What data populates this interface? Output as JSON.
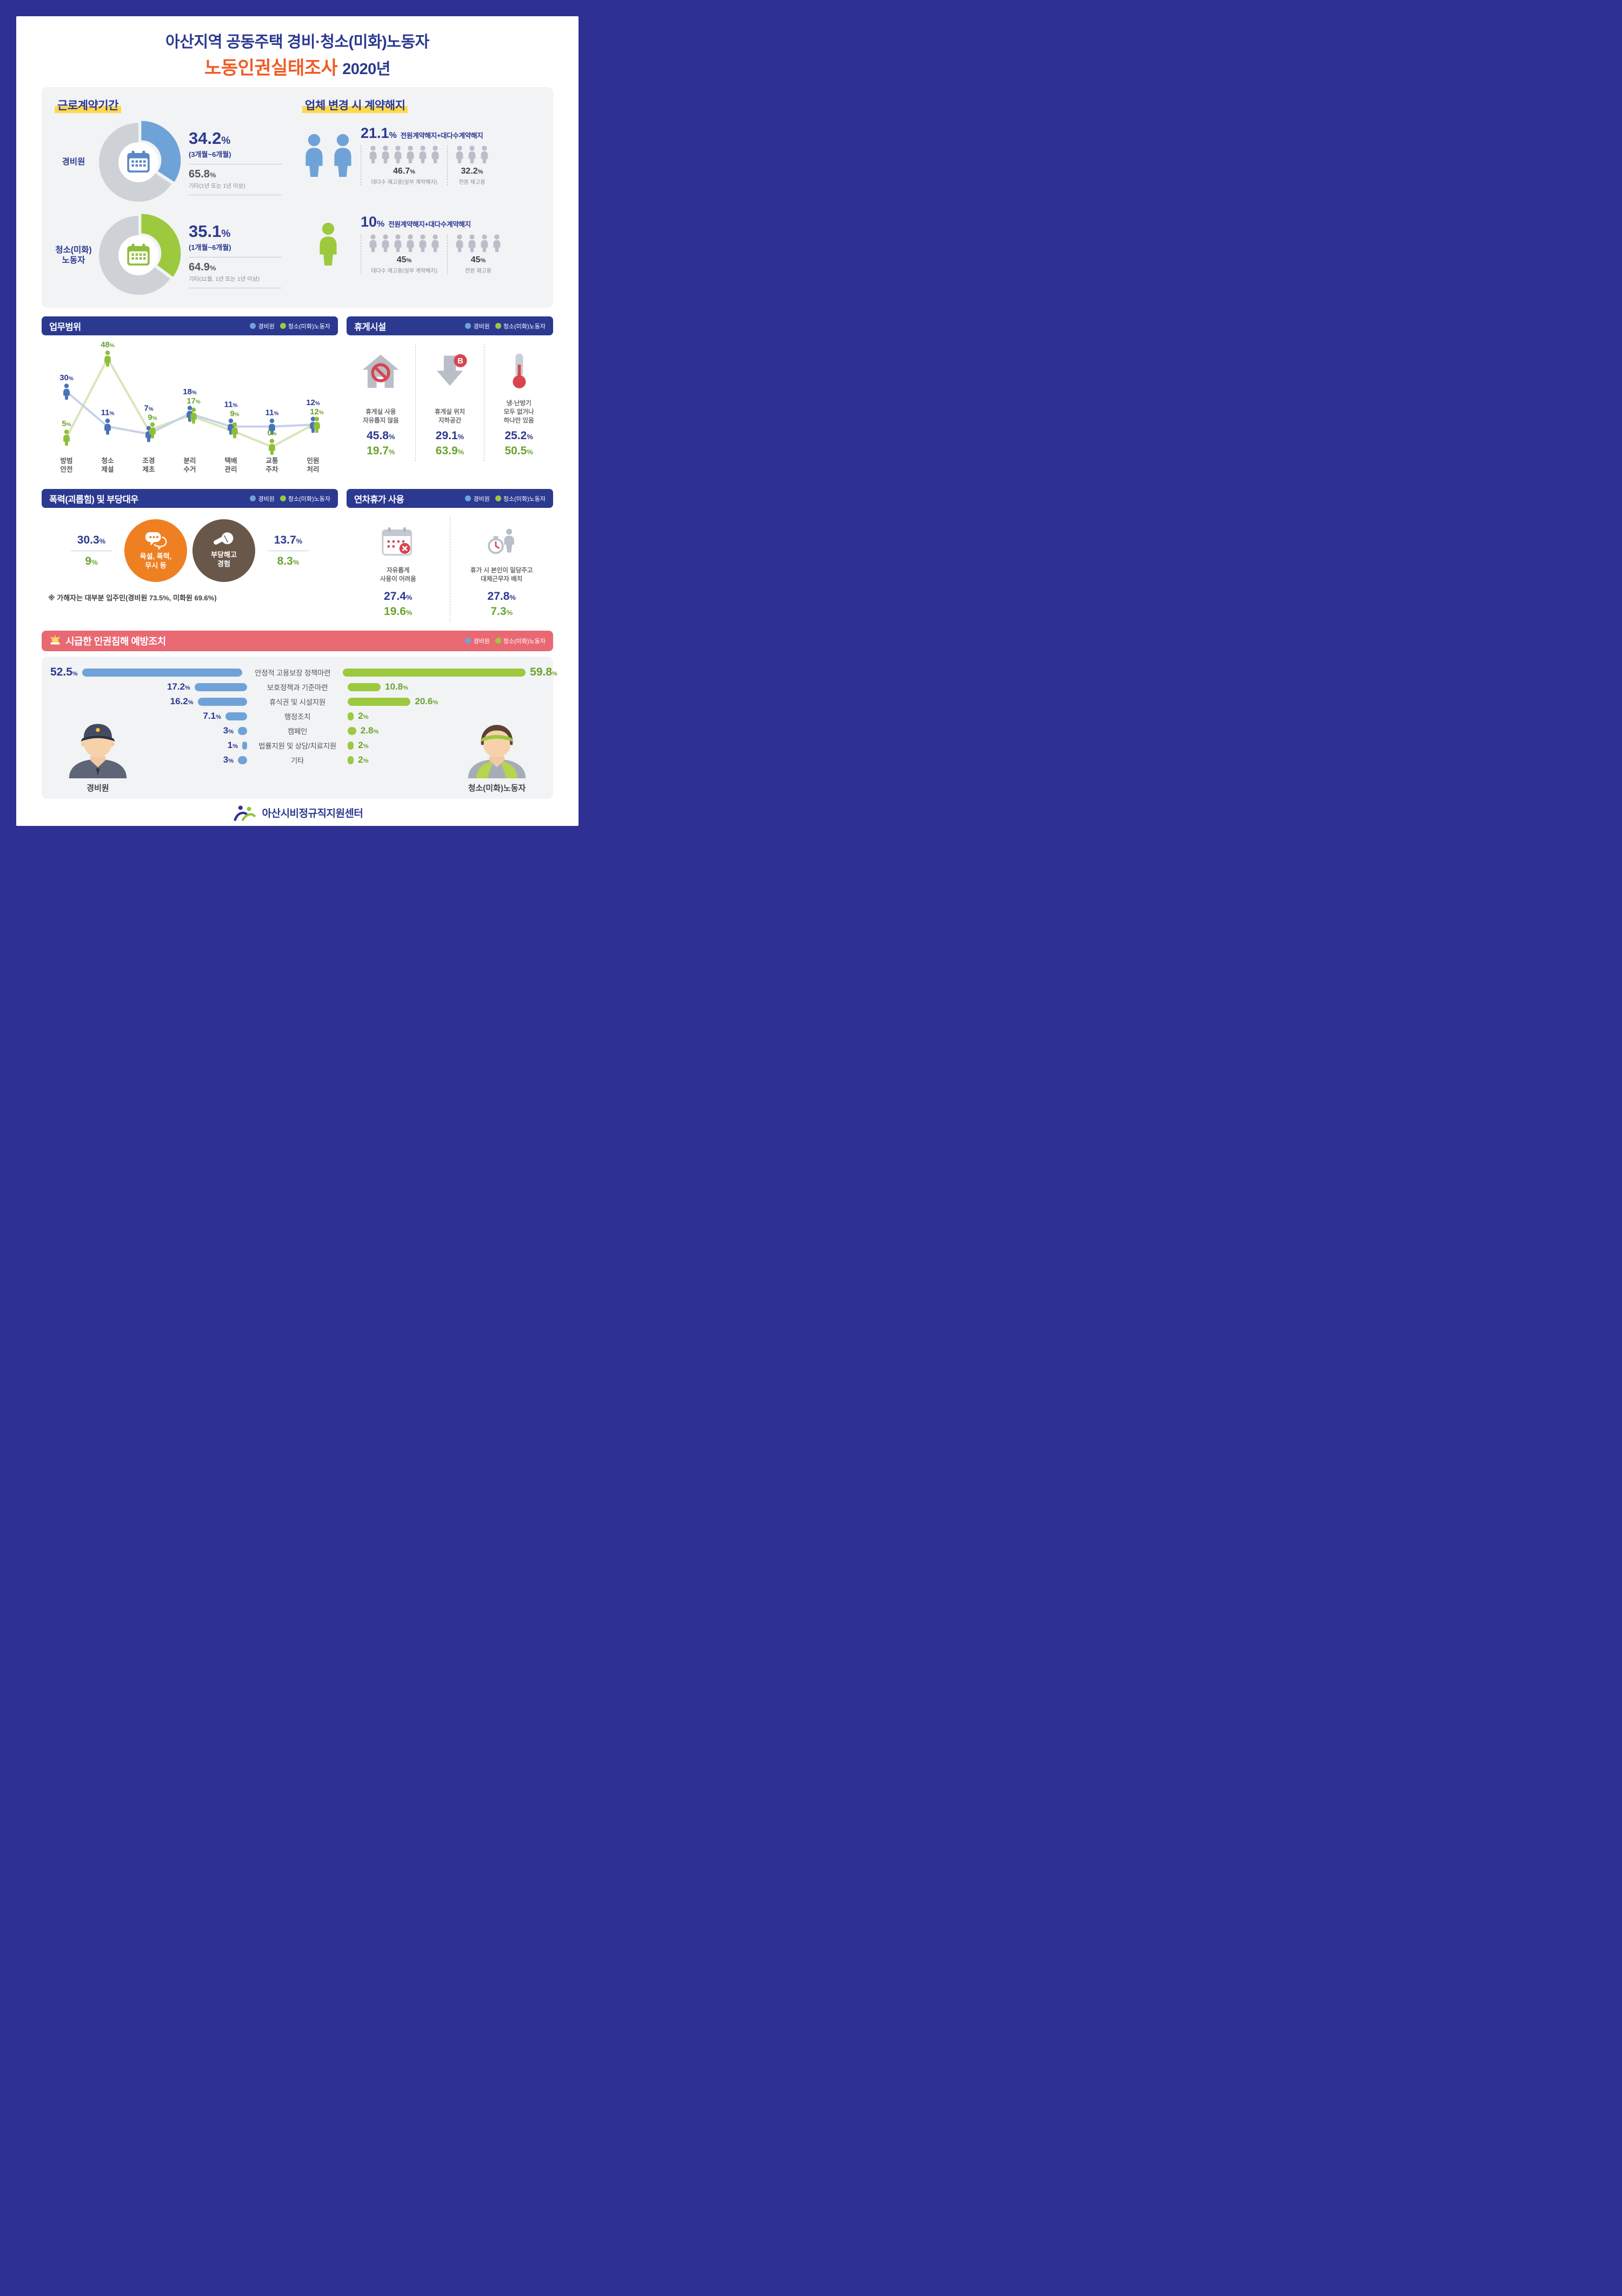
{
  "header": {
    "title_line1": "아산지역 공동주택 경비·청소(미화)노동자",
    "title_highlight": "노동인권실태조사",
    "title_year": "2020년"
  },
  "legend": {
    "guard": "경비원",
    "cleaner": "청소(미화)노동자"
  },
  "colors": {
    "navy": "#2b3990",
    "orange": "#f15a24",
    "guard_blue": "#6fa3d8",
    "cleaner_green": "#9cc93e",
    "value_green": "#6aa32f",
    "gray_icon": "#b9bec8",
    "red": "#d8454f",
    "header_red": "#e96973",
    "circle_orange": "#ef8022",
    "circle_brown": "#695749",
    "highlight_yellow": "#ffd84d"
  },
  "contract": {
    "title": "근로계약기간",
    "rows": [
      {
        "label": "경비원",
        "pct": 34.2,
        "value1": "34.2",
        "unit": "%",
        "desc1": "(3개월~6개월)",
        "value2": "65.8",
        "desc2": "기타(1년 또는 1년 이상)"
      },
      {
        "label": "청소(미화)\n노동자",
        "pct": 35.1,
        "value1": "35.1",
        "unit": "%",
        "desc1": "(1개월~6개월)",
        "value2": "64.9",
        "desc2": "기타(11월, 1년 또는 1년 이상)"
      }
    ]
  },
  "termination": {
    "title": "업체 변경 시 계약해지",
    "rows": [
      {
        "who": "guard",
        "big_count": 2,
        "headline_value": "21.1",
        "unit": "%",
        "headline_label": "전원계약해지+대다수계약해지",
        "groups": [
          {
            "count": 6,
            "value": "46.7",
            "unit": "%",
            "label": "대다수 재고용(일부 계약해지)"
          },
          {
            "count": 3,
            "value": "32.2",
            "unit": "%",
            "label": "전원 재고용"
          }
        ]
      },
      {
        "who": "cleaner",
        "big_count": 1,
        "headline_value": "10",
        "unit": "%",
        "headline_label": "전원계약해지+대다수계약해지",
        "groups": [
          {
            "count": 6,
            "value": "45",
            "unit": "%",
            "label": "대다수 재고용(일부 계약해지)"
          },
          {
            "count": 4,
            "value": "45",
            "unit": "%",
            "label": "전원 재고용"
          }
        ]
      }
    ]
  },
  "duties": {
    "title": "업무범위"
  },
  "facility": {
    "title": "휴게시설",
    "items": [
      {
        "icon": "no-rest-room-icon",
        "label": "휴게실 사용\n자유롭지 않음",
        "guard": "45.8",
        "cleaner": "19.7",
        "unit": "%"
      },
      {
        "icon": "basement-arrow-icon",
        "label": "휴게실 위치\n지하공간",
        "guard": "29.1",
        "cleaner": "63.9",
        "unit": "%"
      },
      {
        "icon": "thermometer-icon",
        "label": "냉·난방기\n모두 없거나\n하나만 있음",
        "guard": "25.2",
        "cleaner": "50.5",
        "unit": "%"
      }
    ]
  },
  "violence": {
    "title": "폭력(괴롭힘) 및 부당대우",
    "left": {
      "guard": "30.3",
      "cleaner": "9",
      "unit": "%"
    },
    "circle1": "욕설, 폭력,\n무시 등",
    "circle2": "부당해고\n경험",
    "right": {
      "guard": "13.7",
      "cleaner": "8.3",
      "unit": "%"
    },
    "note": "※ 가해자는 대부분 입주민(경비원 73.5%, 미화원 69.6%)"
  },
  "leave": {
    "title": "연차휴가 사용",
    "items": [
      {
        "icon": "calendar-blocked-icon",
        "label": "자유롭게\n사용이 어려움",
        "guard": "27.4",
        "cleaner": "19.6",
        "unit": "%"
      },
      {
        "icon": "substitute-worker-icon",
        "label": "휴가 시 본인이 일당주고\n대체근무자 배치",
        "guard": "27.8",
        "cleaner": "7.3",
        "unit": "%"
      }
    ]
  },
  "prevention": {
    "title": "시급한 인권침해 예방조치",
    "left_figure_label": "경비원",
    "right_figure_label": "청소(미화)노동자",
    "rows": [
      {
        "label": "안정적 고용보장 정책마련",
        "guard": "52.5",
        "cleaner": "59.8"
      },
      {
        "label": "보호정책과 기준마련",
        "guard": "17.2",
        "cleaner": "10.8"
      },
      {
        "label": "휴식권 및 시설지원",
        "guard": "16.2",
        "cleaner": "20.6"
      },
      {
        "label": "행정조치",
        "guard": "7.1",
        "cleaner": "2"
      },
      {
        "label": "캠페인",
        "guard": "3",
        "cleaner": "2.8"
      },
      {
        "label": "법률지원 및 상담/치료지원",
        "guard": "1",
        "cleaner": "2"
      },
      {
        "label": "기타",
        "guard": "3",
        "cleaner": "2"
      }
    ]
  },
  "footer": {
    "org": "아산시비정규직지원센터"
  },
  "chart_data": [
    {
      "type": "pie",
      "title": "근로계약기간 - 경비원",
      "labels": [
        "3개월~6개월",
        "기타(1년 또는 1년 이상)"
      ],
      "values": [
        34.2,
        65.8
      ],
      "unit": "%"
    },
    {
      "type": "pie",
      "title": "근로계약기간 - 청소(미화)노동자",
      "labels": [
        "1개월~6개월",
        "기타(11월, 1년 또는 1년 이상)"
      ],
      "values": [
        35.1,
        64.9
      ],
      "unit": "%"
    },
    {
      "type": "line",
      "title": "업무범위",
      "categories": [
        "방범\n안전",
        "청소\n제설",
        "조경\n제초",
        "분리\n수거",
        "택배\n관리",
        "교통\n주차",
        "민원\n처리"
      ],
      "series": [
        {
          "name": "경비원",
          "values": [
            30,
            11,
            7,
            18,
            11,
            11,
            12
          ]
        },
        {
          "name": "청소(미화)노동자",
          "values": [
            5,
            48,
            9,
            17,
            9,
            0,
            12
          ]
        }
      ],
      "ylim": [
        0,
        50
      ],
      "unit": "%",
      "grid": false,
      "legend_position": "top-right"
    },
    {
      "type": "bar",
      "title": "시급한 인권침해 예방조치",
      "categories": [
        "안정적 고용보장 정책마련",
        "보호정책과 기준마련",
        "휴식권 및 시설지원",
        "행정조치",
        "캠페인",
        "법률지원 및 상담/치료지원",
        "기타"
      ],
      "series": [
        {
          "name": "경비원",
          "values": [
            52.5,
            17.2,
            16.2,
            7.1,
            3,
            1,
            3
          ]
        },
        {
          "name": "청소(미화)노동자",
          "values": [
            59.8,
            10.8,
            20.6,
            2,
            2.8,
            2,
            2
          ]
        }
      ],
      "unit": "%",
      "orientation": "horizontal-butterfly"
    }
  ]
}
